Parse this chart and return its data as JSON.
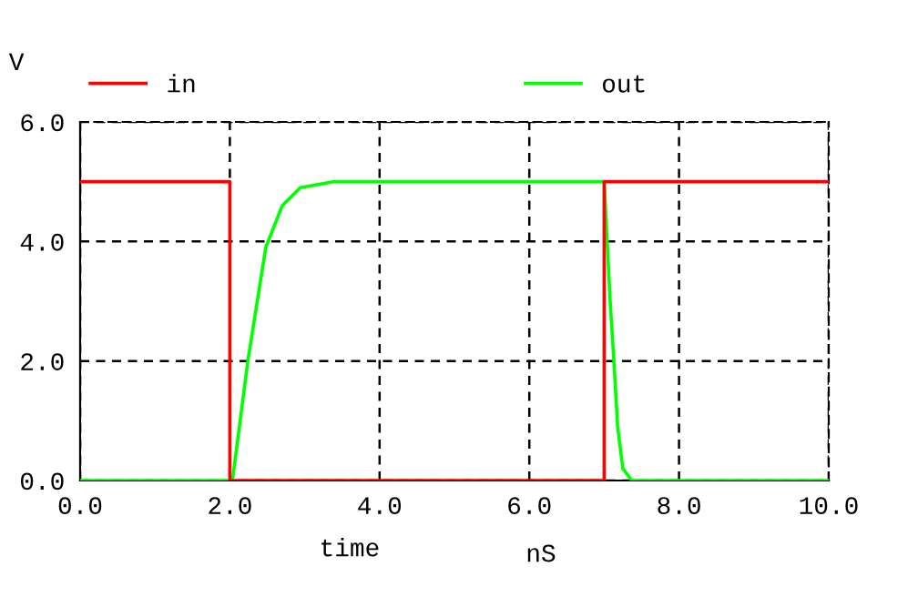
{
  "chart_data": {
    "type": "line",
    "xlabel": "time",
    "ylabel": "V",
    "annotations": [
      "nS"
    ],
    "xlim": [
      0,
      10
    ],
    "ylim": [
      0,
      6
    ],
    "xticks": [
      {
        "value": 0,
        "label": "0.0"
      },
      {
        "value": 2,
        "label": "2.0"
      },
      {
        "value": 4,
        "label": "4.0"
      },
      {
        "value": 6,
        "label": "6.0"
      },
      {
        "value": 8,
        "label": "8.0"
      },
      {
        "value": 10,
        "label": "10.0"
      }
    ],
    "yticks": [
      {
        "value": 0,
        "label": "0.0"
      },
      {
        "value": 2,
        "label": "2.0"
      },
      {
        "value": 4,
        "label": "4.0"
      },
      {
        "value": 6,
        "label": "6.0"
      }
    ],
    "grid": true,
    "legend": "top",
    "line_style": "solid",
    "marker": "none",
    "series": [
      {
        "name": "in",
        "color": "#ff0000",
        "x": [
          0,
          2,
          2,
          7,
          7,
          10
        ],
        "values": [
          5,
          5,
          0,
          0,
          5,
          5
        ]
      },
      {
        "name": "out",
        "color": "#00ff00",
        "x": [
          0,
          2.0,
          2.04,
          2.24,
          2.48,
          2.7,
          2.94,
          3.38,
          7.0,
          7.02,
          7.08,
          7.13,
          7.18,
          7.25,
          7.37,
          10
        ],
        "values": [
          0,
          0,
          0.05,
          2.0,
          3.9,
          4.6,
          4.9,
          5.0,
          5.0,
          4.5,
          3.0,
          2.0,
          0.9,
          0.2,
          0,
          0
        ]
      }
    ]
  }
}
